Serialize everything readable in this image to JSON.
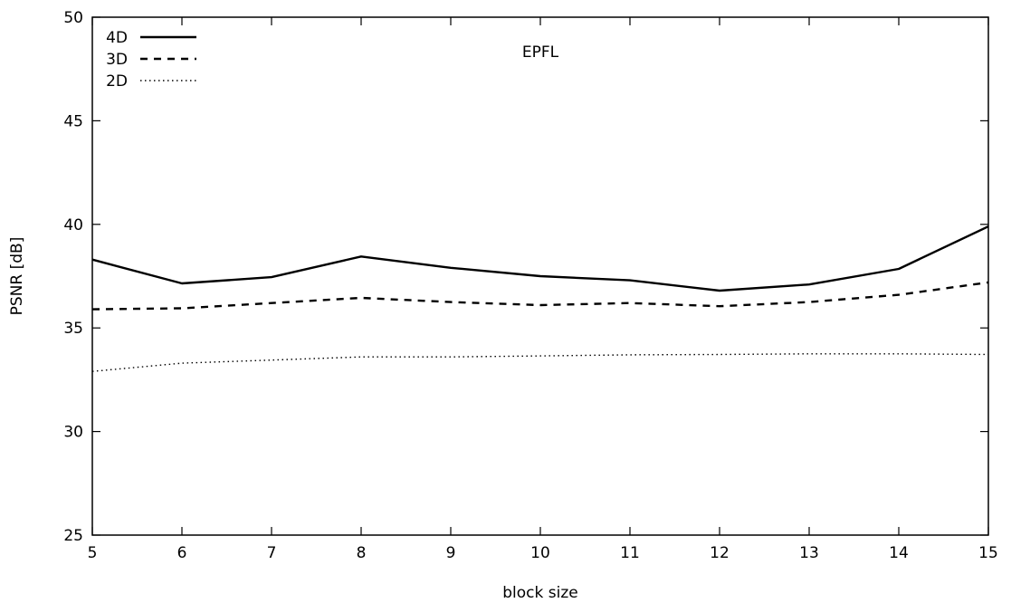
{
  "chart_data": {
    "type": "line",
    "title": "",
    "annotation": "EPFL",
    "xlabel": "block size",
    "ylabel": "PSNR [dB]",
    "xlim": [
      5,
      15
    ],
    "ylim": [
      25,
      50
    ],
    "xticks": [
      5,
      6,
      7,
      8,
      9,
      10,
      11,
      12,
      13,
      14,
      15
    ],
    "yticks": [
      25,
      30,
      35,
      40,
      45,
      50
    ],
    "grid": false,
    "legend_position": "top-left",
    "x": [
      5,
      6,
      7,
      8,
      9,
      10,
      11,
      12,
      13,
      14,
      15
    ],
    "series": [
      {
        "name": "4D",
        "style": "solid",
        "values": [
          38.3,
          37.15,
          37.45,
          38.45,
          37.9,
          37.5,
          37.3,
          36.8,
          37.1,
          37.85,
          39.9
        ]
      },
      {
        "name": "3D",
        "style": "dashed",
        "values": [
          35.9,
          35.95,
          36.2,
          36.45,
          36.25,
          36.1,
          36.2,
          36.05,
          36.25,
          36.6,
          37.2
        ]
      },
      {
        "name": "2D",
        "style": "dotted",
        "values": [
          32.9,
          33.3,
          33.45,
          33.6,
          33.6,
          33.65,
          33.7,
          33.72,
          33.75,
          33.75,
          33.72
        ]
      }
    ],
    "colors": {
      "line": "#000000",
      "background": "#ffffff"
    }
  }
}
